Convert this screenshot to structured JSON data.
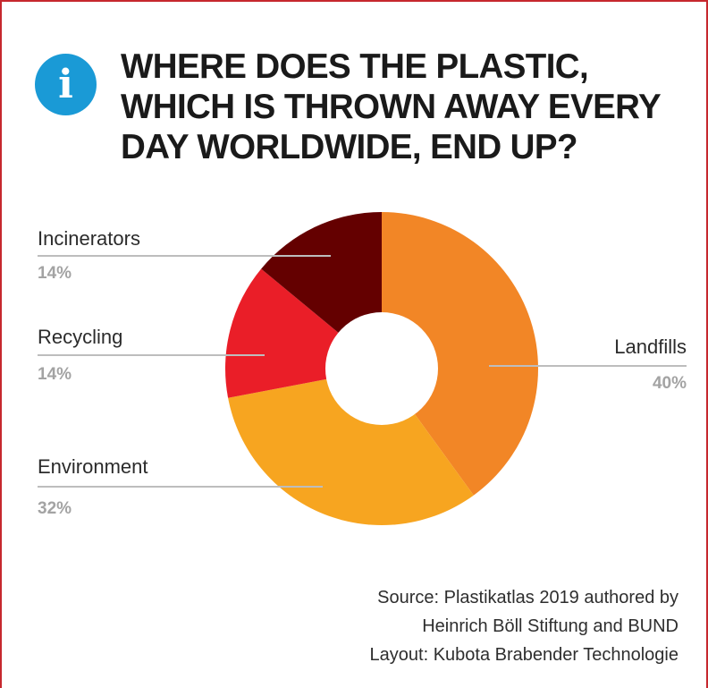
{
  "title_lines": [
    "WHERE DOES THE PLASTIC,",
    "WHICH IS THROWN AWAY EVERY",
    "DAY WORLDWIDE, END UP?"
  ],
  "info_icon": {
    "glyph": "i",
    "color": "#1a9ad6"
  },
  "chart_data": {
    "type": "pie",
    "donut": true,
    "unit": "%",
    "slices": [
      {
        "label": "Landfills",
        "value": 40,
        "value_label": "40%",
        "color": "#f28626"
      },
      {
        "label": "Environment",
        "value": 32,
        "value_label": "32%",
        "color": "#f7a520"
      },
      {
        "label": "Recycling",
        "value": 14,
        "value_label": "14%",
        "color": "#ea1e28"
      },
      {
        "label": "Incinerators",
        "value": 14,
        "value_label": "14%",
        "color": "#640000"
      }
    ]
  },
  "source_lines": [
    "Source: Plastikatlas 2019 authored by",
    "Heinrich Böll Stiftung and BUND",
    "Layout: Kubota Brabender Technologie"
  ]
}
